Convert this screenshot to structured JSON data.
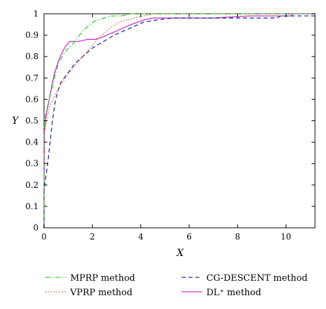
{
  "chart_data": {
    "type": "line",
    "xlabel": "X",
    "ylabel": "Y",
    "xlim": [
      0,
      11.2
    ],
    "ylim": [
      0,
      1
    ],
    "xticks": [
      "0",
      "2",
      "4",
      "6",
      "8",
      "10"
    ],
    "yticks": [
      "0",
      "0.1",
      "0.2",
      "0.3",
      "0.4",
      "0.5",
      "0.6",
      "0.7",
      "0.8",
      "0.9",
      "1"
    ],
    "grid": false,
    "legend_position": "bottom",
    "series": [
      {
        "name": "MPRP method",
        "color": "#2ecc2e",
        "dash": "dashdot",
        "points": [
          [
            0,
            0
          ],
          [
            0,
            0.46
          ],
          [
            0.05,
            0.52
          ],
          [
            0.15,
            0.57
          ],
          [
            0.3,
            0.64
          ],
          [
            0.45,
            0.71
          ],
          [
            0.6,
            0.77
          ],
          [
            0.8,
            0.81
          ],
          [
            1.0,
            0.84
          ],
          [
            1.2,
            0.86
          ],
          [
            1.4,
            0.89
          ],
          [
            1.6,
            0.92
          ],
          [
            1.8,
            0.94
          ],
          [
            2.0,
            0.96
          ],
          [
            2.2,
            0.97
          ],
          [
            2.5,
            0.98
          ],
          [
            2.8,
            0.99
          ],
          [
            3.2,
            0.99
          ],
          [
            3.6,
            1.0
          ],
          [
            11.2,
            1.0
          ]
        ]
      },
      {
        "name": "VPRP method",
        "color": "#e0553a",
        "dash": "dotted",
        "points": [
          [
            0,
            0
          ],
          [
            0,
            0.45
          ],
          [
            0.1,
            0.5
          ],
          [
            0.25,
            0.57
          ],
          [
            0.45,
            0.62
          ],
          [
            0.7,
            0.67
          ],
          [
            1.0,
            0.72
          ],
          [
            1.3,
            0.76
          ],
          [
            1.6,
            0.8
          ],
          [
            1.9,
            0.84
          ],
          [
            2.2,
            0.88
          ],
          [
            2.5,
            0.91
          ],
          [
            2.8,
            0.94
          ],
          [
            3.1,
            0.96
          ],
          [
            3.4,
            0.97
          ],
          [
            3.7,
            0.98
          ],
          [
            4.1,
            0.99
          ],
          [
            4.6,
            1.0
          ],
          [
            11.2,
            1.0
          ]
        ]
      },
      {
        "name": "CG-DESCENT method",
        "color": "#1f2f9e",
        "dash": "dashed",
        "points": [
          [
            0,
            0
          ],
          [
            0,
            0.17
          ],
          [
            0.05,
            0.22
          ],
          [
            0.15,
            0.3
          ],
          [
            0.25,
            0.4
          ],
          [
            0.35,
            0.5
          ],
          [
            0.45,
            0.58
          ],
          [
            0.55,
            0.63
          ],
          [
            0.7,
            0.68
          ],
          [
            0.9,
            0.71
          ],
          [
            1.1,
            0.74
          ],
          [
            1.3,
            0.77
          ],
          [
            1.5,
            0.79
          ],
          [
            1.7,
            0.81
          ],
          [
            2.0,
            0.84
          ],
          [
            2.3,
            0.86
          ],
          [
            2.6,
            0.88
          ],
          [
            2.9,
            0.9
          ],
          [
            3.3,
            0.92
          ],
          [
            3.7,
            0.94
          ],
          [
            4.1,
            0.96
          ],
          [
            4.6,
            0.97
          ],
          [
            5.3,
            0.98
          ],
          [
            7.0,
            0.98
          ],
          [
            9.6,
            0.98
          ],
          [
            9.8,
            0.99
          ],
          [
            11.2,
            0.99
          ]
        ]
      },
      {
        "name": "DL⁺ method",
        "color": "#cc33cc",
        "dash": "solid",
        "points": [
          [
            0,
            0
          ],
          [
            0,
            0.14
          ],
          [
            0.02,
            0.45
          ],
          [
            0.08,
            0.52
          ],
          [
            0.15,
            0.56
          ],
          [
            0.25,
            0.62
          ],
          [
            0.35,
            0.68
          ],
          [
            0.45,
            0.73
          ],
          [
            0.6,
            0.78
          ],
          [
            0.75,
            0.82
          ],
          [
            0.9,
            0.85
          ],
          [
            1.05,
            0.87
          ],
          [
            1.4,
            0.87
          ],
          [
            1.8,
            0.88
          ],
          [
            2.1,
            0.88
          ],
          [
            2.4,
            0.89
          ],
          [
            2.8,
            0.91
          ],
          [
            3.2,
            0.93
          ],
          [
            3.6,
            0.95
          ],
          [
            4.1,
            0.97
          ],
          [
            4.5,
            0.98
          ],
          [
            7.0,
            0.98
          ],
          [
            8.5,
            0.99
          ],
          [
            10.2,
            0.99
          ],
          [
            10.3,
            1.0
          ],
          [
            11.2,
            1.0
          ]
        ]
      }
    ]
  }
}
